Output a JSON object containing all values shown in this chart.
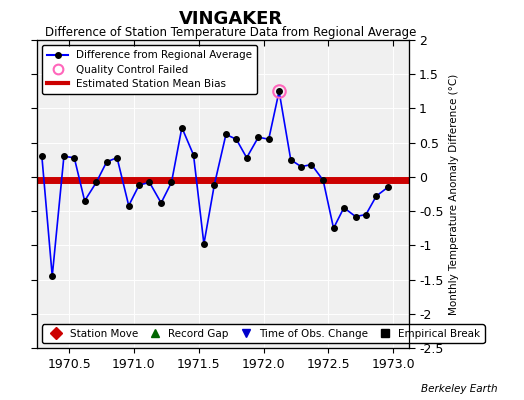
{
  "title": "VINGAKER",
  "subtitle": "Difference of Station Temperature Data from Regional Average",
  "ylabel_right": "Monthly Temperature Anomaly Difference (°C)",
  "background_color": "#ffffff",
  "plot_bg_color": "#f0f0f0",
  "xlim": [
    1970.25,
    1973.12
  ],
  "ylim": [
    -2.5,
    2.0
  ],
  "xticks": [
    1970.5,
    1971.0,
    1971.5,
    1972.0,
    1972.5,
    1973.0
  ],
  "yticks": [
    -2.5,
    -2.0,
    -1.5,
    -1.0,
    -0.5,
    0.0,
    0.5,
    1.0,
    1.5,
    2.0
  ],
  "ytick_labels_right": [
    "-2.5",
    "-2",
    "-1.5",
    "-1",
    "-0.5",
    "0",
    "0.5",
    "1",
    "1.5",
    "2"
  ],
  "bias_value": -0.05,
  "watermark": "Berkeley Earth",
  "line_color": "#0000ff",
  "line_width": 1.2,
  "marker_color": "#000000",
  "marker_size": 4,
  "bias_color": "#cc0000",
  "bias_linewidth": 5,
  "qc_fail_color": "#ff66bb",
  "x_data": [
    1970.29,
    1970.37,
    1970.46,
    1970.54,
    1970.62,
    1970.71,
    1970.79,
    1970.87,
    1970.96,
    1971.04,
    1971.12,
    1971.21,
    1971.29,
    1971.37,
    1971.46,
    1971.54,
    1971.62,
    1971.71,
    1971.79,
    1971.87,
    1971.96,
    1972.04,
    1972.12,
    1972.21,
    1972.29,
    1972.37,
    1972.46,
    1972.54,
    1972.62,
    1972.71,
    1972.79,
    1972.87,
    1972.96
  ],
  "y_data": [
    0.3,
    -1.45,
    0.3,
    0.28,
    -0.35,
    -0.08,
    0.22,
    0.28,
    -0.42,
    -0.12,
    -0.08,
    -0.38,
    -0.08,
    0.72,
    0.32,
    -0.98,
    -0.12,
    0.62,
    0.55,
    0.28,
    0.58,
    0.55,
    1.25,
    0.25,
    0.15,
    0.18,
    -0.05,
    -0.75,
    -0.45,
    -0.58,
    -0.55,
    -0.28,
    -0.15
  ],
  "qc_fail_indices": [
    22
  ],
  "legend1_labels": [
    "Difference from Regional Average",
    "Quality Control Failed",
    "Estimated Station Mean Bias"
  ],
  "legend2_labels": [
    "Station Move",
    "Record Gap",
    "Time of Obs. Change",
    "Empirical Break"
  ],
  "legend2_colors": [
    "#cc0000",
    "#006600",
    "#0000cc",
    "#000000"
  ],
  "legend2_markers": [
    "D",
    "^",
    "v",
    "s"
  ]
}
